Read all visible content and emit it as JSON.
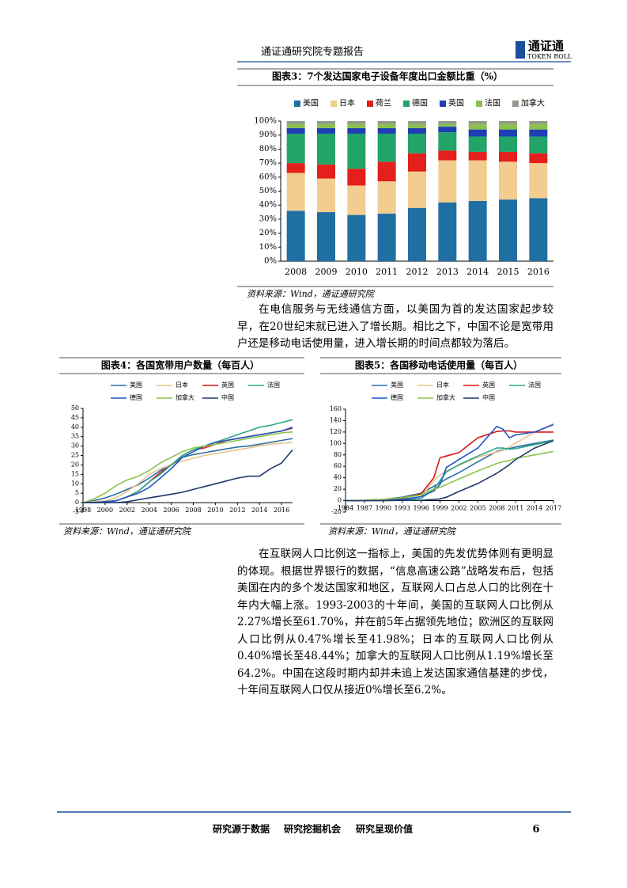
{
  "header": {
    "title": "通证通研究院专题报告",
    "logo": "通证通",
    "logo_sub": "TOKEN ROLL"
  },
  "chart_data": [
    {
      "type": "stacked-bar",
      "title": "图表3：7个发达国家电子设备年度出口金额比重（%）",
      "categories": [
        "2008",
        "2009",
        "2010",
        "2011",
        "2012",
        "2013",
        "2014",
        "2015",
        "2016"
      ],
      "series": [
        {
          "name": "美国",
          "color": "#1f6fa3",
          "values": [
            36,
            35,
            33,
            34,
            38,
            42,
            43,
            44,
            45
          ]
        },
        {
          "name": "日本",
          "color": "#f2cd8f",
          "values": [
            27,
            24,
            21,
            23,
            26,
            30,
            29,
            27,
            25
          ]
        },
        {
          "name": "荷兰",
          "color": "#e3201b",
          "values": [
            7,
            10,
            12,
            14,
            13,
            7,
            6,
            7,
            7
          ]
        },
        {
          "name": "德国",
          "color": "#22a468",
          "values": [
            21,
            22,
            25,
            20,
            14,
            13,
            11,
            11,
            12
          ]
        },
        {
          "name": "英国",
          "color": "#1d3fb3",
          "values": [
            4,
            4,
            4,
            4,
            4,
            4,
            5,
            5,
            5
          ]
        },
        {
          "name": "法国",
          "color": "#8cbf4f",
          "values": [
            3,
            3,
            3,
            3,
            3,
            2,
            4,
            4,
            4
          ]
        },
        {
          "name": "加拿大",
          "color": "#8f9b88",
          "values": [
            2,
            2,
            2,
            2,
            2,
            2,
            2,
            2,
            2
          ]
        }
      ],
      "ylim": [
        0,
        100
      ],
      "yticks": [
        {
          "value": 0,
          "label": "0%"
        },
        {
          "value": 10,
          "label": "10%"
        },
        {
          "value": 20,
          "label": "20%"
        },
        {
          "value": 30,
          "label": "30%"
        },
        {
          "value": 40,
          "label": "40%"
        },
        {
          "value": 50,
          "label": "50%"
        },
        {
          "value": 60,
          "label": "60%"
        },
        {
          "value": 70,
          "label": "70%"
        },
        {
          "value": 80,
          "label": "80%"
        },
        {
          "value": 90,
          "label": "90%"
        },
        {
          "value": 100,
          "label": "100%"
        }
      ],
      "legend": "top",
      "source": "资料来源：Wind，通证通研究院"
    },
    {
      "type": "line",
      "title": "图表4：各国宽带用户数量（每百人）",
      "x": [
        1998,
        1999,
        2000,
        2001,
        2002,
        2003,
        2004,
        2005,
        2006,
        2007,
        2008,
        2009,
        2010,
        2011,
        2012,
        2013,
        2014,
        2015,
        2016,
        2017
      ],
      "series": [
        {
          "name": "美国",
          "color": "#2e6da4",
          "values": [
            0,
            1,
            2.5,
            4.5,
            7,
            9.5,
            13,
            17,
            20,
            24,
            25.5,
            26.5,
            27.5,
            28.5,
            29.5,
            30,
            31,
            32,
            33,
            34
          ]
        },
        {
          "name": "日本",
          "color": "#e8c38a",
          "values": [
            0,
            0.5,
            1,
            2.5,
            6,
            10,
            15,
            18,
            20,
            22,
            23.5,
            25,
            26,
            27,
            28,
            29,
            30,
            31,
            31.5,
            32
          ]
        },
        {
          "name": "英国",
          "color": "#d7191c",
          "values": [
            0,
            0,
            0.5,
            1,
            3,
            6,
            11,
            16,
            20,
            25,
            28,
            29,
            31,
            33,
            34,
            35,
            36,
            37,
            38,
            39.5
          ]
        },
        {
          "name": "法国",
          "color": "#2aa889",
          "values": [
            0,
            0,
            0.5,
            1,
            3,
            6,
            11,
            15,
            20,
            25,
            28,
            30,
            32,
            34,
            36,
            38,
            40,
            41,
            42.5,
            44
          ]
        },
        {
          "name": "德国",
          "color": "#2255c4",
          "values": [
            0,
            0,
            0.5,
            1,
            3,
            5,
            8,
            13,
            18,
            24,
            27,
            30,
            32,
            33,
            34,
            35,
            36,
            37,
            38,
            40
          ]
        },
        {
          "name": "加拿大",
          "color": "#8bc34a",
          "values": [
            0,
            2,
            5,
            9,
            12,
            14,
            17,
            21,
            24,
            27,
            29,
            30,
            31,
            32,
            33,
            34,
            35,
            36,
            37,
            37.5
          ]
        },
        {
          "name": "中国",
          "color": "#1f3a68",
          "values": [
            0,
            0,
            0,
            0,
            0.5,
            1.5,
            2.5,
            3.5,
            4.5,
            5.5,
            7,
            8.5,
            10,
            11.5,
            13,
            14,
            14,
            18,
            21,
            28
          ]
        }
      ],
      "xlim": [
        1998,
        2017
      ],
      "xticks": [
        1998,
        2000,
        2002,
        2004,
        2006,
        2008,
        2010,
        2012,
        2014,
        2016
      ],
      "ylim": [
        -5,
        50
      ],
      "yticks": [
        -5,
        0,
        5,
        10,
        15,
        20,
        25,
        30,
        35,
        40,
        45,
        50
      ],
      "legend": "top",
      "source": "资料来源：Wind，通证通研究院"
    },
    {
      "type": "line",
      "title": "图表5：各国移动电话使用量（每百人）",
      "x": [
        1984,
        1987,
        1990,
        1993,
        1996,
        1998,
        1999,
        2000,
        2002,
        2005,
        2008,
        2009,
        2010,
        2011,
        2014,
        2017
      ],
      "series": [
        {
          "name": "美国",
          "color": "#2e6da4",
          "values": [
            0,
            0.5,
            2,
            6,
            13,
            25,
            31,
            38,
            49,
            68,
            86,
            89,
            91,
            94,
            100,
            106
          ]
        },
        {
          "name": "日本",
          "color": "#e8c38a",
          "values": [
            0,
            0.2,
            1,
            2,
            7,
            35,
            45,
            52,
            62,
            76,
            85,
            88,
            94,
            101,
            119,
            135
          ]
        },
        {
          "name": "英国",
          "color": "#d7191c",
          "values": [
            0,
            0.5,
            2,
            4,
            12,
            40,
            75,
            78,
            84,
            110,
            121,
            122,
            122,
            120,
            120,
            120
          ]
        },
        {
          "name": "法国",
          "color": "#2aa889",
          "values": [
            0,
            0.5,
            1,
            1,
            4,
            20,
            35,
            50,
            63,
            78,
            92,
            92,
            90,
            91,
            98,
            105
          ]
        },
        {
          "name": "德国",
          "color": "#2255c4",
          "values": [
            0,
            0.3,
            1,
            2,
            7,
            17,
            28,
            58,
            72,
            92,
            130,
            125,
            110,
            115,
            120,
            133
          ]
        },
        {
          "name": "加拿大",
          "color": "#8bc34a",
          "values": [
            0,
            0.5,
            2,
            5,
            10,
            20,
            23,
            28,
            38,
            52,
            65,
            68,
            70,
            74,
            80,
            86
          ]
        },
        {
          "name": "中国",
          "color": "#1f3a68",
          "values": [
            0,
            0,
            0,
            0.5,
            0.5,
            2,
            3,
            6,
            16,
            30,
            48,
            55,
            63,
            72,
            92,
            105
          ]
        }
      ],
      "xlim": [
        1984,
        2017
      ],
      "xticks": [
        1984,
        1987,
        1990,
        1993,
        1996,
        1999,
        2002,
        2005,
        2008,
        2011,
        2014,
        2017
      ],
      "ylim": [
        -20,
        160
      ],
      "yticks": [
        -20,
        0,
        20,
        40,
        60,
        80,
        100,
        120,
        140,
        160
      ],
      "legend": "top",
      "source": "资料来源：Wind，通证通研究院"
    }
  ],
  "paragraphs": [
    "在电信服务与无线通信方面，以美国为首的发达国家起步较早，在20世纪末就已进入了增长期。相比之下，中国不论是宽带用户还是移动电话使用量，进入增长期的时间点都较为落后。",
    "在互联网人口比例这一指标上，美国的先发优势体则有更明显的体现。根据世界银行的数据，“信息高速公路”战略发布后，包括美国在内的多个发达国家和地区，互联网人口占总人口的比例在十年内大幅上涨。1993-2003的十年间，美国的互联网人口比例从2.27%增长至61.70%，并在前5年占据领先地位；欧洲区的互联网人口比例从0.47%增长至41.98%；日本的互联网人口比例从0.40%增长至48.44%；加拿大的互联网人口比例从1.19%增长至64.2%。中国在这段时期内却并未追上发达国家通信基建的步伐，十年间互联网人口仅从接近0%增长至6.2%。"
  ],
  "footer": {
    "slogans": [
      "研究源于数据",
      "研究挖掘机会",
      "研究呈现价值"
    ],
    "page": "6"
  }
}
